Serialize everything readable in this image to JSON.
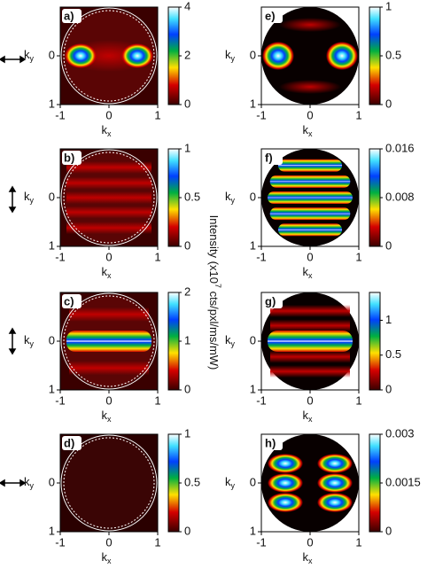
{
  "chart_data": [
    {
      "type": "heatmap",
      "label": "a)",
      "xlim": [
        -1,
        1
      ],
      "ylim": [
        -1,
        1
      ],
      "xticks": [
        -1,
        0,
        1
      ],
      "yticks": [
        0,
        1
      ],
      "xlabel": "k",
      "xlabel_sub": "x",
      "ylabel": "k",
      "ylabel_sub": "y",
      "clim": [
        0,
        4
      ],
      "cticks": [
        0,
        2,
        4
      ]
    },
    {
      "type": "heatmap",
      "label": "b)",
      "xlim": [
        -1,
        1
      ],
      "ylim": [
        -1,
        1
      ],
      "xticks": [
        -1,
        0,
        1
      ],
      "yticks": [
        0,
        1
      ],
      "xlabel": "k",
      "xlabel_sub": "x",
      "ylabel": "k",
      "ylabel_sub": "y",
      "clim": [
        0,
        1
      ],
      "cticks": [
        0,
        0.5,
        1
      ]
    },
    {
      "type": "heatmap",
      "label": "c)",
      "xlim": [
        -1,
        1
      ],
      "ylim": [
        -1,
        1
      ],
      "xticks": [
        -1,
        0,
        1
      ],
      "yticks": [
        0,
        1
      ],
      "xlabel": "k",
      "xlabel_sub": "x",
      "ylabel": "k",
      "ylabel_sub": "y",
      "clim": [
        0,
        2
      ],
      "cticks": [
        0,
        1,
        2
      ]
    },
    {
      "type": "heatmap",
      "label": "d)",
      "xlim": [
        -1,
        1
      ],
      "ylim": [
        -1,
        1
      ],
      "xticks": [
        -1,
        0,
        1
      ],
      "yticks": [
        0,
        1
      ],
      "xlabel": "k",
      "xlabel_sub": "x",
      "ylabel": "k",
      "ylabel_sub": "y",
      "clim": [
        0,
        1
      ],
      "cticks": [
        0,
        0.5,
        1
      ]
    },
    {
      "type": "heatmap",
      "label": "e)",
      "xlim": [
        -1,
        1
      ],
      "ylim": [
        -1,
        1
      ],
      "xticks": [
        -1,
        0,
        1
      ],
      "yticks": [
        0,
        1
      ],
      "xlabel": "k",
      "xlabel_sub": "x",
      "ylabel": "k",
      "ylabel_sub": "y",
      "clim": [
        0,
        1
      ],
      "cticks": [
        0,
        0.5,
        1
      ]
    },
    {
      "type": "heatmap",
      "label": "f)",
      "xlim": [
        -1,
        1
      ],
      "ylim": [
        -1,
        1
      ],
      "xticks": [
        -1,
        0,
        1
      ],
      "yticks": [
        0,
        1
      ],
      "xlabel": "k",
      "xlabel_sub": "x",
      "ylabel": "k",
      "ylabel_sub": "y",
      "clim": [
        0,
        0.016
      ],
      "cticks": [
        0,
        0.008,
        0.016
      ]
    },
    {
      "type": "heatmap",
      "label": "g)",
      "xlim": [
        -1,
        1
      ],
      "ylim": [
        -1,
        1
      ],
      "xticks": [
        -1,
        0,
        1
      ],
      "yticks": [
        0,
        1
      ],
      "xlabel": "k",
      "xlabel_sub": "x",
      "ylabel": "k",
      "ylabel_sub": "y",
      "clim": [
        0,
        1.4
      ],
      "cticks": [
        0,
        0.5,
        1
      ]
    },
    {
      "type": "heatmap",
      "label": "h)",
      "xlim": [
        -1,
        1
      ],
      "ylim": [
        -1,
        1
      ],
      "xticks": [
        -1,
        0,
        1
      ],
      "yticks": [
        0,
        1
      ],
      "xlabel": "k",
      "xlabel_sub": "x",
      "ylabel": "k",
      "ylabel_sub": "y",
      "clim": [
        0,
        0.003
      ],
      "cticks": [
        0,
        0.0015,
        0.003
      ]
    }
  ],
  "side_label": {
    "main": "Intensity (x10",
    "sup": "7",
    "rest": " cts/pxl/ms/mW)"
  }
}
